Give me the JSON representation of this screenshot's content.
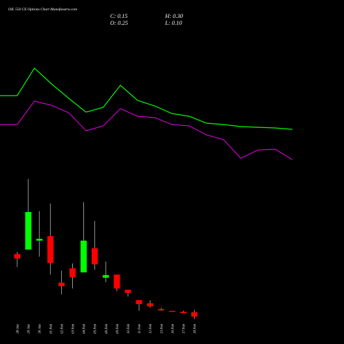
{
  "chart_data": [
    {
      "type": "candlestick",
      "title": "OIL 550 CE Options Chart Munafasutra.com",
      "ohlc_labels": {
        "close": "C: 0.15",
        "high": "H: 0.30",
        "open": "O: 0.25",
        "low": "L: 0.10"
      },
      "categories": [
        "28 Jan",
        "29 Jan",
        "30 Jan",
        "01 Feb",
        "02 Feb",
        "03 Feb",
        "04 Feb",
        "05 Feb",
        "06 Feb",
        "09 Feb",
        "10 Feb",
        "11 Feb",
        "12 Feb",
        "13 Feb",
        "16 Feb",
        "17 Feb",
        "18 Feb"
      ],
      "open": [
        1.55,
        1.65,
        1.85,
        1.95,
        0.91,
        1.23,
        1.14,
        1.68,
        1.02,
        1.09,
        0.75,
        0.52,
        0.45,
        0.32,
        0.28,
        0.26,
        0.25
      ],
      "high": [
        1.6,
        3.23,
        2.51,
        2.68,
        1.18,
        1.34,
        2.71,
        2.29,
        1.38,
        1.09,
        0.75,
        0.52,
        0.52,
        0.35,
        0.28,
        0.28,
        0.3
      ],
      "low": [
        1.26,
        1.65,
        1.49,
        1.09,
        0.65,
        0.78,
        1.14,
        1.2,
        0.92,
        0.72,
        0.6,
        0.28,
        0.35,
        0.28,
        0.26,
        0.23,
        0.1
      ],
      "close": [
        1.45,
        2.49,
        1.89,
        1.35,
        0.83,
        1.03,
        1.85,
        1.32,
        1.08,
        0.78,
        0.68,
        0.43,
        0.38,
        0.29,
        0.26,
        0.23,
        0.15
      ],
      "up_color": "#00ff00",
      "down_color": "#ff0000",
      "ylim": [
        0,
        3.4
      ]
    },
    {
      "type": "line",
      "series": [
        {
          "color": "#00ff00",
          "values": [
            161,
            161,
            201,
            178,
            157,
            137,
            144,
            176,
            154,
            146,
            135,
            131,
            121,
            119,
            116,
            115,
            114,
            112
          ]
        },
        {
          "color": "#cc00cc",
          "values": [
            119,
            119,
            153,
            147,
            136,
            110,
            117,
            142,
            131,
            129,
            119,
            117,
            104,
            97,
            70,
            82,
            83,
            68
          ]
        }
      ],
      "ylim": [
        0,
        300
      ]
    }
  ]
}
